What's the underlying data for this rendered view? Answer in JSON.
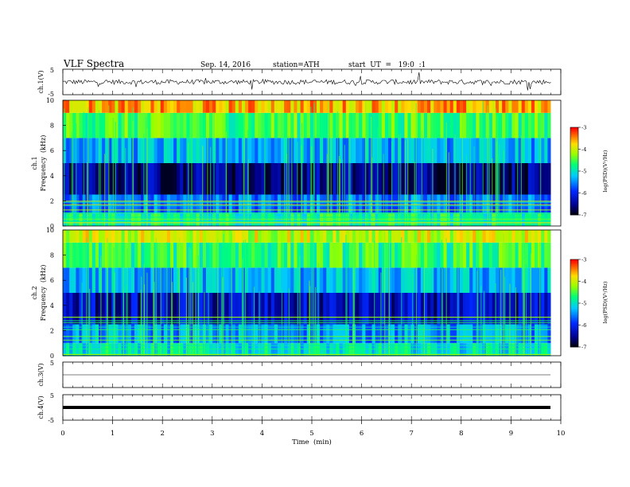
{
  "header": {
    "title": "VLF  Spectra",
    "date": "Sep. 14, 2016",
    "station": "station=ATH",
    "start": "start  UT  =   19:0  :1"
  },
  "colors": {
    "ch1_trace": "#000000",
    "ch4_trace": "#000000",
    "spectrogram_low": "#000000",
    "spectrogram_mid": "#00ff80",
    "spectrogram_high": "#ff0000"
  },
  "chart_data": [
    {
      "type": "line",
      "panel": "ch1-waveform",
      "ylabel": "ch.1(V)",
      "ylim": [
        -5,
        5
      ],
      "yticks": [
        "5",
        "-5"
      ],
      "xlim": [
        0,
        10
      ],
      "description_values": {
        "baseline": 0.0,
        "typical_amplitude": 1.0
      },
      "data_end_min": 9.8
    },
    {
      "type": "heatmap",
      "panel": "ch1-spectrogram",
      "ylabel_top": "ch.1",
      "ylabel": "Frequency  (kHz)",
      "ylim": [
        0,
        10
      ],
      "yticks": [
        "0",
        "2",
        "4",
        "6",
        "8",
        "10"
      ],
      "xlim": [
        0,
        10
      ],
      "data_end_min": 9.8,
      "colorbar": {
        "label": "log(PSD)(V²/Hz)",
        "range": [
          -7,
          -3
        ],
        "ticks": [
          "-3",
          "-4",
          "-5",
          "-6",
          "-7"
        ]
      },
      "dominant_log_psd_by_band": [
        {
          "band_khz": [
            0,
            1
          ],
          "log_psd": -4.8
        },
        {
          "band_khz": [
            1,
            2.5
          ],
          "log_psd": -5.6
        },
        {
          "band_khz": [
            2.5,
            5
          ],
          "log_psd": -6.5
        },
        {
          "band_khz": [
            5,
            7
          ],
          "log_psd": -5.3
        },
        {
          "band_khz": [
            7,
            9
          ],
          "log_psd": -4.5
        },
        {
          "band_khz": [
            9,
            10
          ],
          "log_psd": -3.6
        }
      ]
    },
    {
      "type": "heatmap",
      "panel": "ch2-spectrogram",
      "ylabel_top": "ch.2",
      "ylabel": "Frequency  (kHz)",
      "ylim": [
        0,
        10
      ],
      "yticks": [
        "0",
        "2",
        "4",
        "6",
        "8",
        "10"
      ],
      "xlim": [
        0,
        10
      ],
      "data_end_min": 9.8,
      "colorbar": {
        "label": "log(PSD)(V²/Hz)",
        "range": [
          -7,
          -3
        ],
        "ticks": [
          "-3",
          "-4",
          "-5",
          "-6",
          "-7"
        ]
      },
      "dominant_log_psd_by_band": [
        {
          "band_khz": [
            0,
            1
          ],
          "log_psd": -5.0
        },
        {
          "band_khz": [
            1,
            2.5
          ],
          "log_psd": -5.4
        },
        {
          "band_khz": [
            2.5,
            5
          ],
          "log_psd": -6.3
        },
        {
          "band_khz": [
            5,
            7
          ],
          "log_psd": -5.3
        },
        {
          "band_khz": [
            7,
            9
          ],
          "log_psd": -4.6
        },
        {
          "band_khz": [
            9,
            10
          ],
          "log_psd": -4.0
        }
      ]
    },
    {
      "type": "line",
      "panel": "ch3-waveform",
      "ylabel": "ch.3(V)",
      "ylim": [
        -5,
        5
      ],
      "yticks": [
        "5"
      ],
      "xlim": [
        0,
        10
      ],
      "description_values": {
        "baseline": 0.0,
        "typical_amplitude": 0.0
      },
      "data_end_min": 9.8
    },
    {
      "type": "line",
      "panel": "ch4-waveform",
      "ylabel": "ch.4(V)",
      "ylim": [
        -5,
        5
      ],
      "yticks": [
        "5",
        "-5"
      ],
      "xlim": [
        0,
        10
      ],
      "description_values": {
        "baseline": 0.0,
        "typical_amplitude": 0.3
      },
      "data_end_min": 9.8
    }
  ],
  "xaxis": {
    "label": "Time  (min)",
    "ticks": [
      "0",
      "1",
      "2",
      "3",
      "4",
      "5",
      "6",
      "7",
      "8",
      "9",
      "10"
    ]
  }
}
